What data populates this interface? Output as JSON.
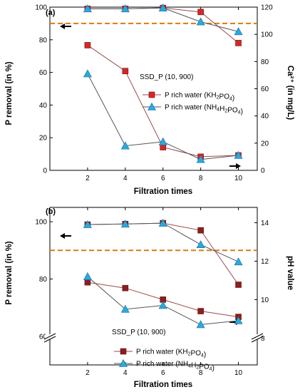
{
  "chart_data": [
    {
      "panel_label": "(a)",
      "type": "line",
      "x": [
        2,
        4,
        6,
        8,
        10
      ],
      "xlabel": "Filtration times",
      "ylabel": "P removal (in %)",
      "y2label": "Ca²⁺ (in mg/L)",
      "xticks": [
        "2",
        "4",
        "6",
        "8",
        "10"
      ],
      "ylim": [
        0,
        100
      ],
      "yticks": [
        "0",
        "20",
        "40",
        "60",
        "80",
        "100"
      ],
      "y2lim": [
        0,
        120
      ],
      "y2ticks": [
        "0",
        "20",
        "40",
        "60",
        "80",
        "100",
        "120"
      ],
      "reference_line": 90,
      "annotation": "SSD_P (10, 900)",
      "legend": [
        {
          "prefix": "P rich water (KH",
          "sub1": "2",
          "mid": "PO",
          "sub2": "4",
          "suffix": ")",
          "marker": "square"
        },
        {
          "prefix": "P rich water (NH",
          "sub1": "4",
          "mid": "H",
          "sub2": "2",
          "mid2": "PO",
          "sub3": "4",
          "suffix": ")",
          "marker": "triangle"
        }
      ],
      "series": [
        {
          "axis": "left",
          "marker": "square",
          "values": [
            99,
            99,
            99.5,
            97,
            78
          ]
        },
        {
          "axis": "left",
          "marker": "triangle",
          "values": [
            99,
            99,
            99.5,
            91,
            85
          ]
        },
        {
          "axis": "right",
          "marker": "square",
          "values": [
            92,
            73,
            17,
            10,
            11
          ]
        },
        {
          "axis": "right",
          "marker": "triangle",
          "values": [
            71,
            18,
            21,
            8,
            11
          ]
        }
      ]
    },
    {
      "panel_label": "(b)",
      "type": "line",
      "x": [
        2,
        4,
        6,
        8,
        10
      ],
      "xlabel": "Filtration times",
      "ylabel": "P removal (in %)",
      "y2label": "pH value",
      "xticks": [
        "2",
        "4",
        "6",
        "8",
        "10"
      ],
      "ylim": [
        50,
        105
      ],
      "yticks": [
        "60",
        "80",
        "100"
      ],
      "y2lim": [
        6.6,
        14.8
      ],
      "y2ticks": [
        "8",
        "10",
        "12",
        "14"
      ],
      "reference_line": 90,
      "annotation": "SSD_P (10, 900)",
      "legend": [
        {
          "prefix": "P rich water (KH",
          "sub1": "2",
          "mid": "PO",
          "sub2": "4",
          "suffix": ")",
          "marker": "square"
        },
        {
          "prefix": "P rich water (NH",
          "sub1": "4",
          "mid": "H",
          "sub2": "2",
          "mid2": "PO",
          "sub3": "4",
          "suffix": ")",
          "marker": "triangle"
        }
      ],
      "series": [
        {
          "axis": "left",
          "marker": "square",
          "values": [
            99,
            99.2,
            99.5,
            97,
            78
          ]
        },
        {
          "axis": "left",
          "marker": "triangle",
          "values": [
            99,
            99.2,
            99.5,
            92,
            86
          ]
        },
        {
          "axis": "right",
          "marker": "square",
          "values": [
            10.9,
            10.6,
            10,
            9.4,
            9.1
          ]
        },
        {
          "axis": "right",
          "marker": "triangle",
          "values": [
            11.2,
            9.5,
            9.7,
            8.7,
            8.9
          ]
        }
      ]
    }
  ],
  "colors": {
    "square_fill": "#d8262a",
    "square_fill_b": "#8a1f1f",
    "triangle_fill": "#29a9e1",
    "line_square": "#9a4a4a",
    "line_triangle": "#555555",
    "reference": "#d97b14"
  }
}
